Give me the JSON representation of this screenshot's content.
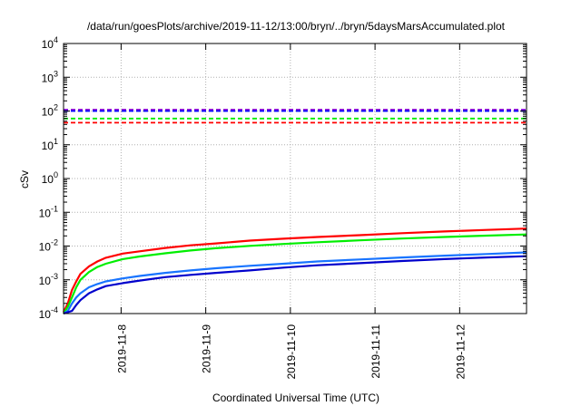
{
  "chart_data": {
    "type": "line",
    "title": "/data/run/goesPlots/archive/2019-11-12/13:00/bryn/../bryn/5daysMarsAccumulated.plot",
    "xlabel": "Coordinated Universal Time (UTC)",
    "ylabel": "cSv",
    "yscale": "log",
    "ylim": [
      0.0001,
      10000
    ],
    "xlim": [
      0.0,
      5.47
    ],
    "x_unit_note_hidden": true,
    "x_ticks": [
      {
        "value": 0.68,
        "label": "2019-11-8"
      },
      {
        "value": 1.68,
        "label": "2019-11-9"
      },
      {
        "value": 2.68,
        "label": "2019-11-10"
      },
      {
        "value": 3.68,
        "label": "2019-11-11"
      },
      {
        "value": 4.68,
        "label": "2019-11-12"
      }
    ],
    "y_ticks": [
      {
        "value": 0.0001,
        "base": "10",
        "exp": "-4"
      },
      {
        "value": 0.001,
        "base": "10",
        "exp": "-3"
      },
      {
        "value": 0.01,
        "base": "10",
        "exp": "-2"
      },
      {
        "value": 0.1,
        "base": "10",
        "exp": "-1"
      },
      {
        "value": 1,
        "base": "10",
        "exp": "0"
      },
      {
        "value": 10,
        "base": "10",
        "exp": "1"
      },
      {
        "value": 100,
        "base": "10",
        "exp": "2"
      },
      {
        "value": 1000,
        "base": "10",
        "exp": "3"
      },
      {
        "value": 10000,
        "base": "10",
        "exp": "4"
      }
    ],
    "grid": true,
    "series": [
      {
        "color": "#ff0000",
        "style": "solid",
        "x": [
          0.0,
          0.05,
          0.1,
          0.15,
          0.2,
          0.3,
          0.4,
          0.5,
          0.7,
          0.9,
          1.2,
          1.5,
          1.8,
          2.2,
          2.6,
          3.0,
          3.5,
          4.0,
          4.5,
          5.0,
          5.47
        ],
        "y": [
          0.00011,
          0.0002,
          0.0005,
          0.0009,
          0.0015,
          0.0025,
          0.0035,
          0.0045,
          0.006,
          0.007,
          0.0088,
          0.0105,
          0.012,
          0.0145,
          0.0165,
          0.0185,
          0.021,
          0.024,
          0.027,
          0.03,
          0.033
        ]
      },
      {
        "color": "#00ee00",
        "style": "solid",
        "x": [
          0.0,
          0.05,
          0.1,
          0.15,
          0.2,
          0.3,
          0.4,
          0.5,
          0.7,
          0.9,
          1.2,
          1.5,
          1.8,
          2.2,
          2.6,
          3.0,
          3.5,
          4.0,
          4.5,
          5.0,
          5.47
        ],
        "y": [
          0.0001,
          0.00016,
          0.0003,
          0.0006,
          0.001,
          0.0017,
          0.0024,
          0.003,
          0.0041,
          0.0049,
          0.0061,
          0.0074,
          0.0086,
          0.0101,
          0.0115,
          0.013,
          0.0148,
          0.0167,
          0.0185,
          0.0203,
          0.022
        ]
      },
      {
        "color": "#1874ff",
        "style": "solid",
        "x": [
          0.0,
          0.05,
          0.1,
          0.15,
          0.2,
          0.3,
          0.4,
          0.5,
          0.7,
          0.9,
          1.2,
          1.5,
          1.8,
          2.2,
          2.6,
          3.0,
          3.5,
          4.0,
          4.5,
          5.0,
          5.47
        ],
        "y": [
          0.0001,
          0.00012,
          0.0002,
          0.0003,
          0.0004,
          0.0006,
          0.00075,
          0.0009,
          0.0011,
          0.0013,
          0.0016,
          0.0019,
          0.0022,
          0.0026,
          0.003,
          0.0035,
          0.004,
          0.0046,
          0.0052,
          0.0058,
          0.0065
        ]
      },
      {
        "color": "#0000cc",
        "style": "solid",
        "x": [
          0.0,
          0.1,
          0.15,
          0.2,
          0.3,
          0.4,
          0.5,
          0.7,
          0.9,
          1.2,
          1.5,
          1.8,
          2.2,
          2.6,
          3.0,
          3.5,
          4.0,
          4.5,
          5.0,
          5.47
        ],
        "y": [
          0.0001,
          0.00012,
          0.00018,
          0.00025,
          0.0004,
          0.00052,
          0.00065,
          0.0008,
          0.00095,
          0.0012,
          0.0014,
          0.0016,
          0.0019,
          0.0023,
          0.0027,
          0.0031,
          0.0036,
          0.0041,
          0.0046,
          0.005
        ]
      },
      {
        "color": "#9400d3",
        "style": "dashed",
        "x": [
          0.0,
          5.47
        ],
        "y": [
          110,
          110
        ]
      },
      {
        "color": "#0000ff",
        "style": "dashed",
        "x": [
          0.0,
          5.47
        ],
        "y": [
          100,
          100
        ]
      },
      {
        "color": "#00ee00",
        "style": "dashed",
        "x": [
          0.0,
          5.47
        ],
        "y": [
          60,
          60
        ]
      },
      {
        "color": "#ff0000",
        "style": "dashed",
        "x": [
          0.0,
          5.47
        ],
        "y": [
          45,
          45
        ]
      }
    ]
  }
}
